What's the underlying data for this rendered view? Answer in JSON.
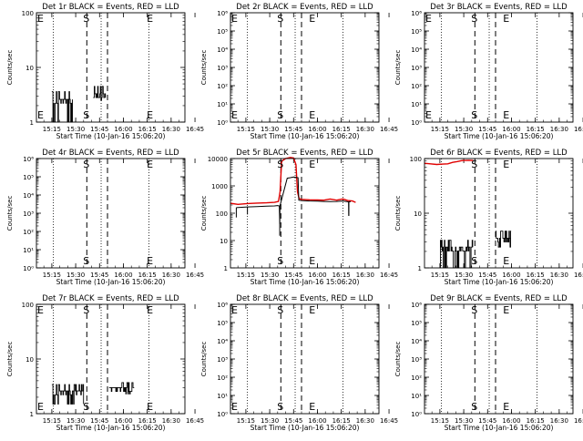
{
  "figure": {
    "xlabel": "Start Time (10-Jan-16 15:06:20)",
    "ylabel": "Counts/sec",
    "x_tick_labels": [
      "15:15",
      "15:30",
      "15:45",
      "16:00",
      "16:15",
      "16:30",
      "16:45"
    ],
    "series_colors": {
      "events": "#000000",
      "lld": "#e00000"
    },
    "marker_labels": {
      "e": "E",
      "s": "S"
    }
  },
  "chart_data": [
    {
      "type": "line",
      "title": "Det 1r BLACK = Events, RED = LLD",
      "yscale": "log",
      "ylim": [
        1,
        100
      ],
      "y_tick_labels": [
        "1",
        "10",
        "100"
      ],
      "show_minor_decade_labels": false,
      "x_range_minutes": [
        5.33,
        98.67
      ],
      "markers": [
        {
          "label": "E",
          "t": 5.33
        },
        {
          "label": "S",
          "t": 37.0
        },
        {
          "label": "E",
          "t": 77.0
        }
      ],
      "dotted_lines_min": [
        16,
        46,
        76
      ],
      "dashed_lines_min": [
        37,
        50
      ],
      "series": [
        {
          "name": "Events",
          "color": "#000000",
          "segments": [
            {
              "t0": 15,
              "t1": 28,
              "level": 2.6,
              "lo": 1.0,
              "hi": 3.6
            },
            {
              "t0": 41,
              "t1": 49,
              "level": 3.3,
              "lo": 2.5,
              "hi": 4.5
            }
          ]
        }
      ]
    },
    {
      "type": "line",
      "title": "Det 2r BLACK = Events, RED = LLD",
      "yscale": "log",
      "ylim": [
        1,
        1000000
      ],
      "y_tick_labels": [
        "10⁰",
        "10¹",
        "10²",
        "10³",
        "10⁴",
        "10⁵",
        "10⁶"
      ],
      "show_minor_decade_labels": true,
      "x_range_minutes": [
        5.33,
        98.67
      ],
      "markers": [
        {
          "label": "E",
          "t": 5.33
        },
        {
          "label": "S",
          "t": 37.0
        },
        {
          "label": "E",
          "t": 57.0
        }
      ],
      "dotted_lines_min": [
        16,
        46,
        76
      ],
      "dashed_lines_min": [
        37,
        50
      ],
      "series": []
    },
    {
      "type": "line",
      "title": "Det 3r BLACK = Events, RED = LLD",
      "yscale": "log",
      "ylim": [
        1,
        1000000
      ],
      "y_tick_labels": [
        "10⁰",
        "10¹",
        "10²",
        "10³",
        "10⁴",
        "10⁵",
        "10⁶"
      ],
      "show_minor_decade_labels": true,
      "x_range_minutes": [
        5.33,
        98.67
      ],
      "markers": [
        {
          "label": "E",
          "t": 5.33
        },
        {
          "label": "S",
          "t": 37.0
        },
        {
          "label": "E",
          "t": 57.0
        }
      ],
      "dotted_lines_min": [
        16,
        46,
        76
      ],
      "dashed_lines_min": [
        37,
        50
      ],
      "series": []
    },
    {
      "type": "line",
      "title": "Det 4r BLACK = Events, RED = LLD",
      "yscale": "log",
      "ylim": [
        1,
        1000000
      ],
      "y_tick_labels": [
        "10⁰",
        "10¹",
        "10²",
        "10³",
        "10⁴",
        "10⁵",
        "10⁶"
      ],
      "show_minor_decade_labels": true,
      "x_range_minutes": [
        5.33,
        98.67
      ],
      "markers": [
        {
          "label": "S",
          "t": 37.0
        },
        {
          "label": "E",
          "t": 77.0
        }
      ],
      "dotted_lines_min": [
        16,
        46,
        76
      ],
      "dashed_lines_min": [
        37,
        50
      ],
      "series": []
    },
    {
      "type": "line",
      "title": "Det 5r BLACK = Events, RED = LLD",
      "yscale": "log",
      "ylim": [
        1,
        10000
      ],
      "y_tick_labels": [
        "1",
        "10",
        "100",
        "1000",
        "10000"
      ],
      "show_minor_decade_labels": false,
      "x_range_minutes": [
        5.33,
        98.67
      ],
      "markers": [
        {
          "label": "S",
          "t": 37.0
        },
        {
          "label": "E",
          "t": 57.0
        }
      ],
      "dotted_lines_min": [
        16,
        46,
        76
      ],
      "dashed_lines_min": [
        37,
        50
      ],
      "series": [
        {
          "name": "LLD",
          "color": "#e00000",
          "points": [
            [
              5.3,
              230
            ],
            [
              10,
              210
            ],
            [
              16,
              225
            ],
            [
              22,
              235
            ],
            [
              28,
              240
            ],
            [
              33,
              250
            ],
            [
              35.5,
              270
            ],
            [
              36.5,
              600
            ],
            [
              37.5,
              8000
            ],
            [
              40,
              10000
            ],
            [
              43,
              11000
            ],
            [
              45,
              10500
            ],
            [
              46.5,
              6000
            ],
            [
              47.5,
              600
            ],
            [
              48.5,
              340
            ],
            [
              50,
              320
            ],
            [
              55,
              310
            ],
            [
              60,
              305
            ],
            [
              64,
              300
            ],
            [
              68,
              330
            ],
            [
              72,
              300
            ],
            [
              76,
              330
            ],
            [
              79,
              290
            ],
            [
              82,
              280
            ],
            [
              84,
              250
            ]
          ]
        },
        {
          "name": "Events",
          "color": "#000000",
          "points": [
            [
              9,
              160
            ],
            [
              16,
              170
            ],
            [
              22,
              175
            ],
            [
              28,
              180
            ],
            [
              33,
              185
            ],
            [
              35,
              190
            ],
            [
              36,
              185
            ],
            [
              36.3,
              40
            ],
            [
              36.4,
              185
            ],
            [
              41,
              1900
            ],
            [
              43,
              2000
            ],
            [
              45,
              2100
            ],
            [
              47.8,
              2000
            ],
            [
              48.3,
              300
            ],
            [
              50,
              290
            ],
            [
              55,
              280
            ],
            [
              60,
              275
            ],
            [
              64,
              270
            ],
            [
              68,
              265
            ],
            [
              72,
              270
            ],
            [
              76,
              280
            ],
            [
              78,
              270
            ],
            [
              79.6,
              260
            ],
            [
              79.7,
              80
            ],
            [
              79.8,
              260
            ],
            [
              81,
              270
            ]
          ],
          "dropouts": [
            [
              9,
              160,
              70
            ],
            [
              16,
              170,
              90
            ],
            [
              36.3,
              185,
              15
            ],
            [
              79.7,
              260,
              80
            ]
          ]
        }
      ]
    },
    {
      "type": "line",
      "title": "Det 6r BLACK = Events, RED = LLD",
      "yscale": "log",
      "ylim": [
        1,
        100
      ],
      "y_tick_labels": [
        "1",
        "10",
        "100"
      ],
      "show_minor_decade_labels": false,
      "x_range_minutes": [
        5.33,
        98.67
      ],
      "markers": [
        {
          "label": "S",
          "t": 37.0
        },
        {
          "label": "E",
          "t": 57.0
        }
      ],
      "dotted_lines_min": [
        16,
        46,
        76
      ],
      "dashed_lines_min": [
        37,
        50
      ],
      "series": [
        {
          "name": "LLD",
          "color": "#e00000",
          "points": [
            [
              5.3,
              82
            ],
            [
              9,
              80
            ],
            [
              13,
              78
            ],
            [
              17,
              79
            ],
            [
              20,
              80
            ],
            [
              23,
              85
            ],
            [
              26,
              88
            ],
            [
              29,
              92
            ],
            [
              33,
              93
            ],
            [
              36,
              92
            ]
          ]
        },
        {
          "name": "Events",
          "color": "#000000",
          "segments": [
            {
              "t0": 15,
              "t1": 36,
              "level": 2.4,
              "lo": 1.0,
              "hi": 3.2
            },
            {
              "t0": 50,
              "t1": 60,
              "level": 3.5,
              "lo": 2.4,
              "hi": 4.7
            }
          ]
        }
      ]
    },
    {
      "type": "line",
      "title": "Det 7r BLACK = Events, RED = LLD",
      "yscale": "log",
      "ylim": [
        1,
        100
      ],
      "y_tick_labels": [
        "1",
        "10",
        "100"
      ],
      "show_minor_decade_labels": false,
      "x_range_minutes": [
        5.33,
        98.67
      ],
      "markers": [
        {
          "label": "E",
          "t": 5.33
        },
        {
          "label": "S",
          "t": 37.0
        },
        {
          "label": "E",
          "t": 77.0
        }
      ],
      "dotted_lines_min": [
        16,
        46,
        76
      ],
      "dashed_lines_min": [
        37,
        50
      ],
      "series": [
        {
          "name": "Events",
          "color": "#000000",
          "segments": [
            {
              "t0": 15,
              "t1": 35,
              "level": 2.6,
              "lo": 1.5,
              "hi": 3.4
            },
            {
              "t0": 51,
              "t1": 67,
              "level": 3.0,
              "lo": 2.3,
              "hi": 3.7
            }
          ]
        }
      ]
    },
    {
      "type": "line",
      "title": "Det 8r BLACK = Events, RED = LLD",
      "yscale": "log",
      "ylim": [
        1,
        1000000
      ],
      "y_tick_labels": [
        "10⁰",
        "10¹",
        "10²",
        "10³",
        "10⁴",
        "10⁵",
        "10⁶"
      ],
      "show_minor_decade_labels": true,
      "x_range_minutes": [
        5.33,
        98.67
      ],
      "markers": [
        {
          "label": "E",
          "t": 5.33
        },
        {
          "label": "S",
          "t": 37.0
        },
        {
          "label": "E",
          "t": 57.0
        }
      ],
      "dotted_lines_min": [
        16,
        46,
        76
      ],
      "dashed_lines_min": [
        37,
        50
      ],
      "series": []
    },
    {
      "type": "line",
      "title": "Det 9r BLACK = Events, RED = LLD",
      "yscale": "log",
      "ylim": [
        1,
        1000000
      ],
      "y_tick_labels": [
        "10⁰",
        "10¹",
        "10²",
        "10³",
        "10⁴",
        "10⁵",
        "10⁶"
      ],
      "show_minor_decade_labels": true,
      "x_range_minutes": [
        5.33,
        98.67
      ],
      "markers": [
        {
          "label": "S",
          "t": 37.0
        },
        {
          "label": "E",
          "t": 57.0
        }
      ],
      "dotted_lines_min": [
        16,
        46,
        76
      ],
      "dashed_lines_min": [
        37,
        50
      ],
      "series": []
    }
  ]
}
